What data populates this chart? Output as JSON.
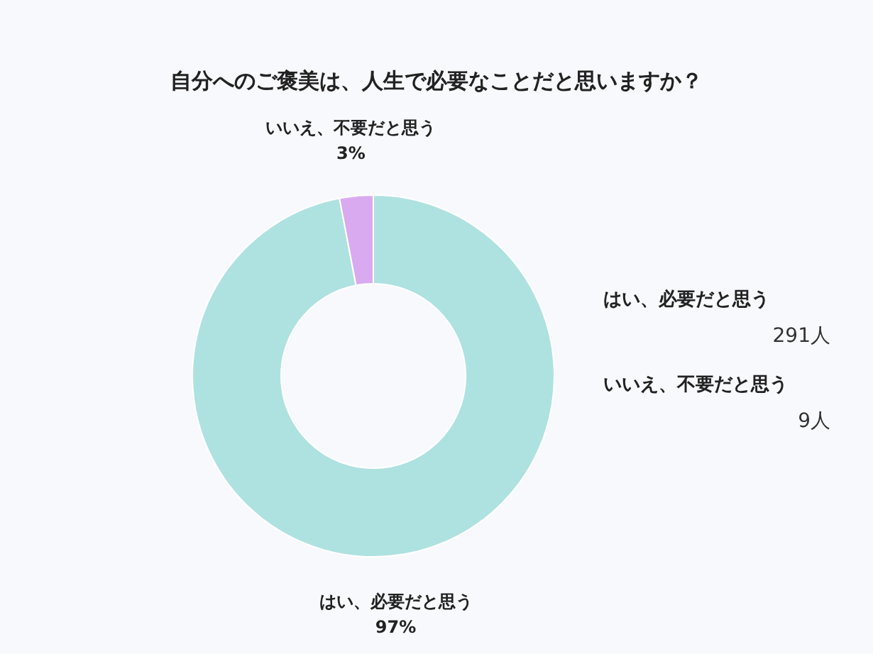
{
  "chart_data": {
    "type": "donut",
    "title": "自分へのご褒美は、人生で必要なことだと思いますか？",
    "categories": [
      "はい、必要だと思う",
      "いいえ、不要だと思う"
    ],
    "values": [
      97,
      3
    ],
    "colors": [
      "#aee2e1",
      "#d9aaf0"
    ],
    "value_labels": [
      "97%",
      "3%"
    ],
    "annotations": [
      "291人",
      "9人"
    ]
  }
}
